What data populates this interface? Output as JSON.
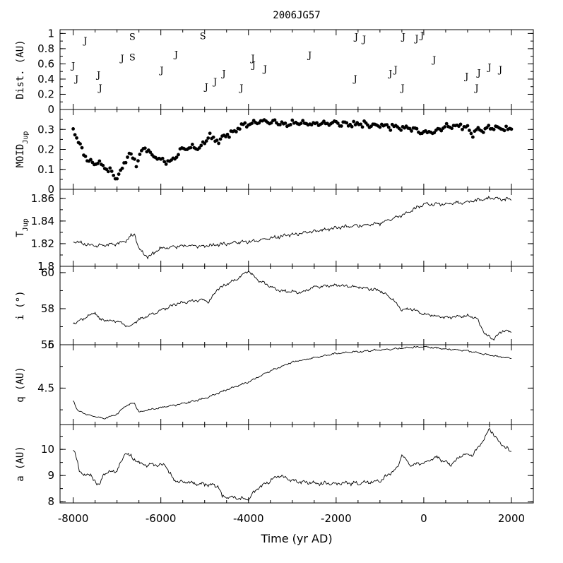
{
  "chart_data": {
    "type": "line",
    "title": "2006JG57",
    "xlabel": "Time (yr AD)",
    "xlim": [
      -8300,
      2500
    ],
    "x_ticks": [
      -8000,
      -6000,
      -4000,
      -2000,
      0,
      2000
    ],
    "x_tick_labels": [
      "-8000",
      "-6000",
      "-4000",
      "-2000",
      "0",
      "2000"
    ],
    "grid": false,
    "panels": [
      {
        "id": "dist",
        "type": "scatter",
        "ylabel": "Dist. (AU)",
        "ylim": [
          0,
          1.05
        ],
        "y_ticks": [
          0,
          0.2,
          0.4,
          0.6,
          0.8,
          1
        ],
        "y_tick_labels": [
          "0",
          "0.2",
          "0.4",
          "0.6",
          "0.8",
          "1"
        ],
        "points": [
          {
            "x": -8000,
            "y": 0.58,
            "label": "J"
          },
          {
            "x": -7920,
            "y": 0.41,
            "label": "J"
          },
          {
            "x": -7720,
            "y": 0.91,
            "label": "J"
          },
          {
            "x": -7420,
            "y": 0.46,
            "label": "J"
          },
          {
            "x": -7380,
            "y": 0.29,
            "label": "J"
          },
          {
            "x": -6880,
            "y": 0.68,
            "label": "J"
          },
          {
            "x": -6650,
            "y": 0.96,
            "label": "S"
          },
          {
            "x": -6650,
            "y": 0.69,
            "label": "S"
          },
          {
            "x": -5980,
            "y": 0.52,
            "label": "J"
          },
          {
            "x": -5650,
            "y": 0.73,
            "label": "J"
          },
          {
            "x": -5040,
            "y": 0.97,
            "label": "S"
          },
          {
            "x": -4960,
            "y": 0.3,
            "label": "J"
          },
          {
            "x": -4760,
            "y": 0.37,
            "label": "J"
          },
          {
            "x": -4560,
            "y": 0.48,
            "label": "J"
          },
          {
            "x": -4160,
            "y": 0.29,
            "label": "J"
          },
          {
            "x": -3900,
            "y": 0.68,
            "label": "J"
          },
          {
            "x": -3880,
            "y": 0.59,
            "label": "J"
          },
          {
            "x": -3620,
            "y": 0.54,
            "label": "J"
          },
          {
            "x": -2600,
            "y": 0.72,
            "label": "J"
          },
          {
            "x": -1540,
            "y": 0.96,
            "label": "J"
          },
          {
            "x": -1360,
            "y": 0.93,
            "label": "J"
          },
          {
            "x": -1560,
            "y": 0.41,
            "label": "J"
          },
          {
            "x": -760,
            "y": 0.48,
            "label": "J"
          },
          {
            "x": -640,
            "y": 0.53,
            "label": "J"
          },
          {
            "x": -460,
            "y": 0.96,
            "label": "J"
          },
          {
            "x": -480,
            "y": 0.29,
            "label": "J"
          },
          {
            "x": -160,
            "y": 0.94,
            "label": "J"
          },
          {
            "x": -40,
            "y": 0.98,
            "label": "J"
          },
          {
            "x": 240,
            "y": 0.66,
            "label": "J"
          },
          {
            "x": 980,
            "y": 0.44,
            "label": "J"
          },
          {
            "x": 1210,
            "y": 0.29,
            "label": "J"
          },
          {
            "x": 1260,
            "y": 0.49,
            "label": "J"
          },
          {
            "x": 1500,
            "y": 0.56,
            "label": "J"
          },
          {
            "x": 1750,
            "y": 0.53,
            "label": "J"
          }
        ]
      },
      {
        "id": "moid",
        "type": "scatter",
        "ylabel": "MOID",
        "ylabel_sub": "Jup",
        "ylim": [
          0,
          0.4
        ],
        "y_ticks": [
          0,
          0.1,
          0.2,
          0.3
        ],
        "y_tick_labels": [
          "0",
          "0.1",
          "0.2",
          "0.3"
        ],
        "knots": [
          [
            -8000,
            0.31
          ],
          [
            -7850,
            0.22
          ],
          [
            -7650,
            0.14
          ],
          [
            -7400,
            0.13
          ],
          [
            -7150,
            0.09
          ],
          [
            -7000,
            0.06
          ],
          [
            -6850,
            0.12
          ],
          [
            -6700,
            0.18
          ],
          [
            -6550,
            0.13
          ],
          [
            -6400,
            0.21
          ],
          [
            -6200,
            0.17
          ],
          [
            -5900,
            0.14
          ],
          [
            -5700,
            0.15
          ],
          [
            -5500,
            0.21
          ],
          [
            -5100,
            0.21
          ],
          [
            -4900,
            0.27
          ],
          [
            -4700,
            0.24
          ],
          [
            -4500,
            0.27
          ],
          [
            -4100,
            0.32
          ],
          [
            -3800,
            0.34
          ],
          [
            -3000,
            0.33
          ],
          [
            -2000,
            0.33
          ],
          [
            -1000,
            0.32
          ],
          [
            -300,
            0.31
          ],
          [
            0,
            0.28
          ],
          [
            200,
            0.29
          ],
          [
            500,
            0.31
          ],
          [
            900,
            0.32
          ],
          [
            1100,
            0.28
          ],
          [
            1500,
            0.31
          ],
          [
            2000,
            0.3
          ]
        ],
        "x_step": 40,
        "jitter": 0.015,
        "seed": 11
      },
      {
        "id": "tjup",
        "type": "line",
        "ylabel": "T",
        "ylabel_sub": "Jup",
        "ylim": [
          1.8,
          1.868
        ],
        "y_ticks": [
          1.8,
          1.82,
          1.84,
          1.86
        ],
        "y_tick_labels": [
          "1.8",
          "1.82",
          "1.84",
          "1.86"
        ],
        "knots": [
          [
            -8000,
            1.822
          ],
          [
            -7500,
            1.818
          ],
          [
            -7000,
            1.82
          ],
          [
            -6800,
            1.823
          ],
          [
            -6600,
            1.829
          ],
          [
            -6500,
            1.815
          ],
          [
            -6300,
            1.808
          ],
          [
            -6000,
            1.816
          ],
          [
            -5500,
            1.818
          ],
          [
            -5000,
            1.818
          ],
          [
            -4000,
            1.822
          ],
          [
            -3000,
            1.828
          ],
          [
            -2000,
            1.834
          ],
          [
            -1000,
            1.838
          ],
          [
            -500,
            1.845
          ],
          [
            0,
            1.855
          ],
          [
            500,
            1.855
          ],
          [
            1000,
            1.857
          ],
          [
            1500,
            1.86
          ],
          [
            2000,
            1.859
          ]
        ],
        "x_step": 20,
        "jitter": 0.0015,
        "seed": 23
      },
      {
        "id": "incl",
        "type": "line",
        "ylabel": "i (°)",
        "ylim": [
          56,
          60.35
        ],
        "y_ticks": [
          56,
          58,
          60
        ],
        "y_tick_labels": [
          "56",
          "58",
          "60"
        ],
        "knots": [
          [
            -8000,
            57.2
          ],
          [
            -7800,
            57.4
          ],
          [
            -7500,
            57.8
          ],
          [
            -7400,
            57.4
          ],
          [
            -7000,
            57.3
          ],
          [
            -6700,
            57.0
          ],
          [
            -6500,
            57.4
          ],
          [
            -6000,
            57.9
          ],
          [
            -5600,
            58.3
          ],
          [
            -5100,
            58.5
          ],
          [
            -4900,
            58.4
          ],
          [
            -4700,
            59.1
          ],
          [
            -4300,
            59.6
          ],
          [
            -4000,
            60.1
          ],
          [
            -3800,
            59.6
          ],
          [
            -3300,
            59.0
          ],
          [
            -2800,
            58.9
          ],
          [
            -2500,
            59.2
          ],
          [
            -2000,
            59.3
          ],
          [
            -1500,
            59.2
          ],
          [
            -1000,
            59.0
          ],
          [
            -700,
            58.5
          ],
          [
            -500,
            57.9
          ],
          [
            -300,
            58.0
          ],
          [
            0,
            57.7
          ],
          [
            500,
            57.5
          ],
          [
            1000,
            57.6
          ],
          [
            1200,
            57.5
          ],
          [
            1400,
            56.6
          ],
          [
            1600,
            56.3
          ],
          [
            1800,
            56.8
          ],
          [
            2000,
            56.7
          ]
        ],
        "x_step": 20,
        "jitter": 0.08,
        "seed": 37
      },
      {
        "id": "q",
        "type": "line",
        "ylabel": "q (AU)",
        "ylim": [
          4.08,
          5.0
        ],
        "y_ticks": [
          4.5,
          5
        ],
        "y_tick_labels": [
          "4.5",
          "5"
        ],
        "knots": [
          [
            -8000,
            4.36
          ],
          [
            -7900,
            4.24
          ],
          [
            -7600,
            4.18
          ],
          [
            -7300,
            4.15
          ],
          [
            -7000,
            4.2
          ],
          [
            -6800,
            4.3
          ],
          [
            -6600,
            4.33
          ],
          [
            -6500,
            4.22
          ],
          [
            -6200,
            4.26
          ],
          [
            -5600,
            4.31
          ],
          [
            -5000,
            4.38
          ],
          [
            -4500,
            4.48
          ],
          [
            -4000,
            4.57
          ],
          [
            -3500,
            4.7
          ],
          [
            -3000,
            4.8
          ],
          [
            -2000,
            4.9
          ],
          [
            -1000,
            4.94
          ],
          [
            -500,
            4.96
          ],
          [
            0,
            4.98
          ],
          [
            500,
            4.95
          ],
          [
            1000,
            4.93
          ],
          [
            1500,
            4.88
          ],
          [
            2000,
            4.84
          ]
        ],
        "x_step": 20,
        "jitter": 0.01,
        "seed": 51
      },
      {
        "id": "a",
        "type": "line",
        "ylabel": "a (AU)",
        "ylim": [
          7.95,
          10.95
        ],
        "y_ticks": [
          8,
          9,
          10
        ],
        "y_tick_labels": [
          "8",
          "9",
          "10"
        ],
        "knots": [
          [
            -8000,
            10.0
          ],
          [
            -7950,
            9.9
          ],
          [
            -7850,
            9.1
          ],
          [
            -7600,
            9.0
          ],
          [
            -7400,
            8.6
          ],
          [
            -7300,
            9.1
          ],
          [
            -7000,
            9.2
          ],
          [
            -6800,
            9.9
          ],
          [
            -6600,
            9.6
          ],
          [
            -6400,
            9.4
          ],
          [
            -5900,
            9.4
          ],
          [
            -5700,
            8.8
          ],
          [
            -5200,
            8.7
          ],
          [
            -4700,
            8.6
          ],
          [
            -4600,
            8.2
          ],
          [
            -4000,
            8.1
          ],
          [
            -3800,
            8.5
          ],
          [
            -3300,
            9.0
          ],
          [
            -3000,
            8.8
          ],
          [
            -2500,
            8.7
          ],
          [
            -2000,
            8.7
          ],
          [
            -1500,
            8.7
          ],
          [
            -1000,
            8.8
          ],
          [
            -600,
            9.3
          ],
          [
            -500,
            9.8
          ],
          [
            -300,
            9.4
          ],
          [
            0,
            9.5
          ],
          [
            300,
            9.7
          ],
          [
            600,
            9.4
          ],
          [
            900,
            9.8
          ],
          [
            1100,
            9.8
          ],
          [
            1300,
            10.2
          ],
          [
            1500,
            10.8
          ],
          [
            1700,
            10.3
          ],
          [
            2000,
            9.9
          ]
        ],
        "x_step": 20,
        "jitter": 0.07,
        "seed": 67
      }
    ]
  }
}
